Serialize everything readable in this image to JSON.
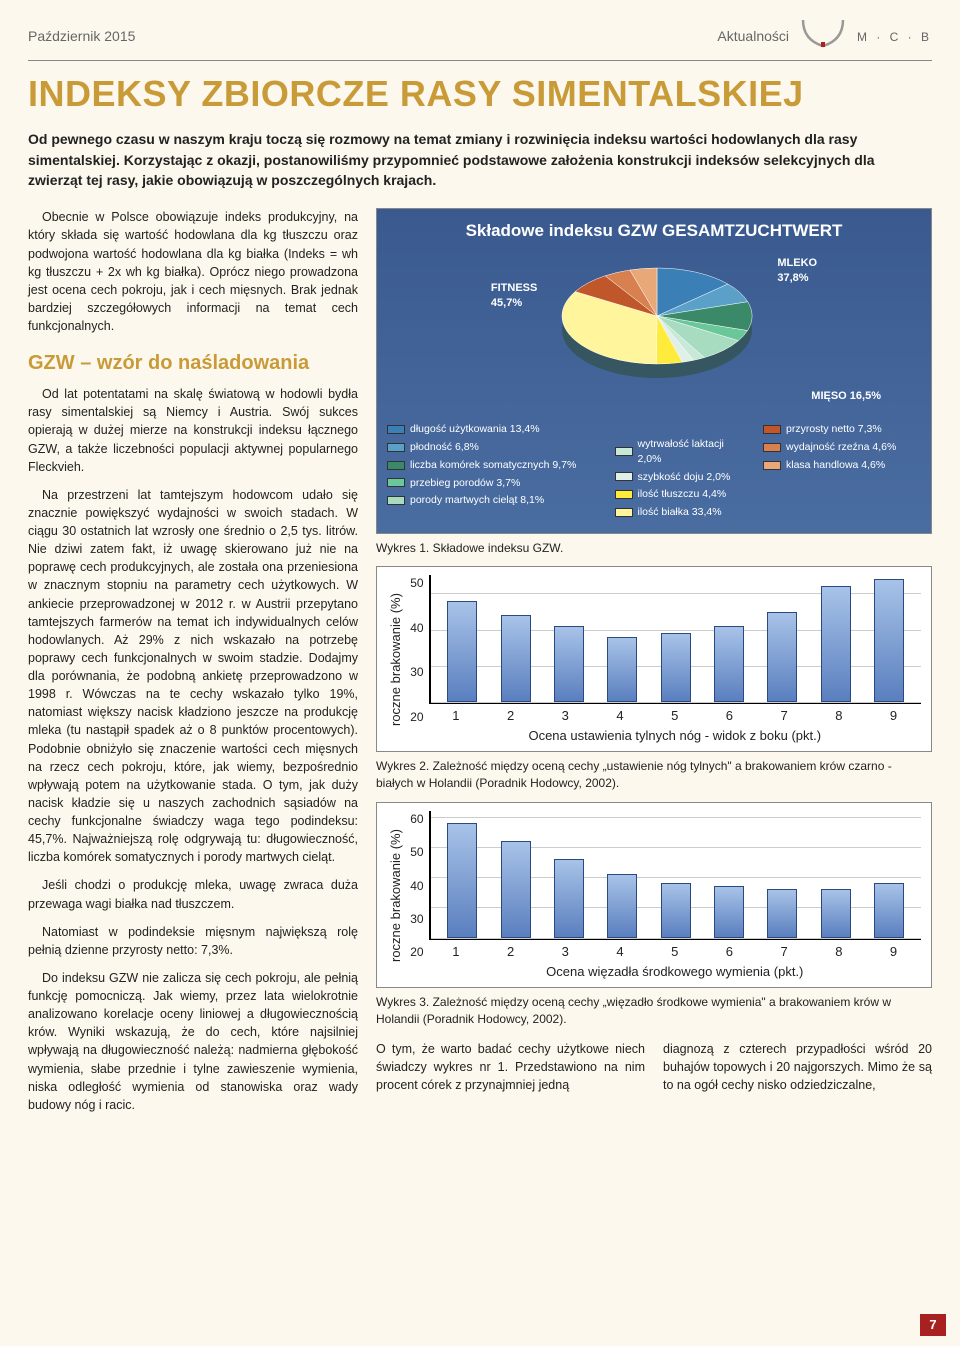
{
  "header": {
    "date": "Październik 2015",
    "section": "Aktualności",
    "brand_letters": "M · C · B"
  },
  "title": "INDEKSY ZBIORCZE RASY SIMENTALSKIEJ",
  "lead": "Od pewnego czasu w naszym kraju toczą się rozmowy na temat zmiany i rozwinięcia indeksu wartości hodowlanych dla rasy simentalskiej. Korzystając z okazji, postanowiliśmy przypomnieć podstawowe założenia konstrukcji indeksów selekcyjnych dla zwierząt tej rasy, jakie obowiązują w poszczególnych krajach.",
  "para1": "Obecnie w Polsce obowiązuje indeks produkcyjny, na który składa się wartość hodowlana dla kg tłuszczu oraz podwojona wartość hodowlana dla kg białka (Indeks = wh kg tłuszczu + 2x wh kg białka). Oprócz niego prowadzona jest ocena cech pokroju, jak i cech mięsnych. Brak jednak bardziej szczegółowych informacji na temat cech funkcjonalnych.",
  "sub1": "GZW – wzór do naśladowania",
  "para2": "Od lat potentatami na skalę światową w hodowli bydła rasy simentalskiej są Niemcy i Austria. Swój sukces opierają w dużej mierze na konstrukcji indeksu łącznego GZW, a także liczebności populacji aktywnej popularnego Fleckvieh.",
  "para3": "Na przestrzeni lat tamtejszym hodowcom udało się znacznie powiększyć wydajności w swoich stadach. W ciągu 30 ostatnich lat wzrosły one średnio o 2,5 tys. litrów. Nie dziwi zatem fakt, iż uwagę skierowano już nie na poprawę cech produkcyjnych, ale została ona przeniesiona w znacznym stopniu na parametry cech użytkowych. W ankiecie przeprowadzonej w 2012 r. w Austrii przepytano tamtejszych farmerów na temat ich indywidualnych celów hodowlanych. Aż 29% z nich wskazało na potrzebę poprawy cech funkcjonalnych w swoim stadzie. Dodajmy dla porównania, że podobną ankietę przeprowadzono w 1998 r. Wówczas na te cechy wskazało tylko 19%, natomiast większy nacisk kładziono jeszcze na produkcję mleka (tu nastąpił spadek aż o 8 punktów procentowych). Podobnie obniżyło się znaczenie wartości cech mięsnych na rzecz cech pokroju, które, jak wiemy, bezpośrednio wpływają potem na użytkowanie stada. O tym, jak duży nacisk kładzie się u naszych zachodnich sąsiadów na cechy funkcjonalne świadczy waga tego podindeksu: 45,7%. Najważniejszą rolę odgrywają tu: długowieczność, liczba komórek somatycznych i porody martwych cieląt.",
  "para4": "Jeśli chodzi o produkcję mleka, uwagę zwraca duża przewaga wagi białka nad tłuszczem.",
  "para5": "Natomiast w podindeksie mięsnym największą rolę pełnią dzienne przyrosty netto: 7,3%.",
  "para6": "Do indeksu GZW nie zalicza się cech pokroju, ale pełnią funkcję pomocniczą. Jak wiemy, przez lata wielokrotnie analizowano korelacje oceny liniowej a długowiecznością krów. Wyniki wskazują, że do cech, które najsilniej wpływają na długowieczność należą: nadmierna głębokość wymienia, słabe przednie i tylne zawieszenie wymienia, niska odległość wymienia od stanowiska oraz wady budowy nóg i racic.",
  "pie": {
    "title": "Składowe indeksu GZW GESAMTZUCHTWERT",
    "fitness_label": "FITNESS",
    "fitness_value": "45,7%",
    "mleko_label": "MLEKO",
    "mleko_value": "37,8%",
    "mieso_label": "MIĘSO",
    "mieso_value": "16,5%",
    "slices": [
      {
        "label": "fitness",
        "pct": 45.7,
        "color": "#4aa8c9"
      },
      {
        "label": "mleko",
        "pct": 37.8,
        "color": "#ffeb3b"
      },
      {
        "label": "mieso",
        "pct": 16.5,
        "color": "#c0572a"
      }
    ],
    "legend_left": [
      {
        "color": "#3a7fb5",
        "text": "długość użytkowania 13,4%"
      },
      {
        "color": "#5aa0c9",
        "text": "płodność 6,8%"
      },
      {
        "color": "#3a8a6a",
        "text": "liczba komórek somatycznych 9,7%"
      },
      {
        "color": "#6ac79a",
        "text": "przebieg porodów 3,7%"
      },
      {
        "color": "#a8dcc0",
        "text": "porody martwych cieląt 8,1%"
      },
      {
        "color": "#c8e8d8",
        "text": "wytrwałość laktacji 2,0%"
      },
      {
        "color": "#e0f0e8",
        "text": "szybkość doju 2,0%"
      }
    ],
    "legend_mid": [
      {
        "color": "#ffeb3b",
        "text": "ilość tłuszczu 4,4%"
      },
      {
        "color": "#fff59d",
        "text": "ilość białka 33,4%"
      }
    ],
    "legend_right": [
      {
        "color": "#c0572a",
        "text": "przyrosty netto 7,3%"
      },
      {
        "color": "#d88050",
        "text": "wydajność rzeźna 4,6%"
      },
      {
        "color": "#e8a878",
        "text": "klasa handlowa 4,6%"
      }
    ]
  },
  "caption1": "Wykres 1. Składowe indeksu GZW.",
  "chart2": {
    "y_label": "roczne brakowanie (%)",
    "y_ticks": [
      "50",
      "40",
      "30",
      "20"
    ],
    "y_min": 20,
    "y_max": 55,
    "x_ticks": [
      "1",
      "2",
      "3",
      "4",
      "5",
      "6",
      "7",
      "8",
      "9"
    ],
    "x_label": "Ocena ustawienia tylnych nóg - widok z boku (pkt.)",
    "values": [
      48,
      44,
      41,
      38,
      39,
      41,
      45,
      52,
      54
    ],
    "bar_color_top": "#a8c3e8",
    "bar_color_bottom": "#5a7fbf",
    "grid_color": "#cccccc"
  },
  "caption2": "Wykres 2. Zależność między oceną cechy „ustawienie nóg tylnych\" a brakowaniem krów czarno - białych w Holandii (Poradnik Hodowcy, 2002).",
  "chart3": {
    "y_label": "roczne brakowanie (%)",
    "y_ticks": [
      "60",
      "50",
      "40",
      "30",
      "20"
    ],
    "y_min": 20,
    "y_max": 62,
    "x_ticks": [
      "1",
      "2",
      "3",
      "4",
      "5",
      "6",
      "7",
      "8",
      "9"
    ],
    "x_label": "Ocena więzadła środkowego wymienia (pkt.)",
    "values": [
      58,
      52,
      46,
      41,
      38,
      37,
      36,
      36,
      38
    ],
    "bar_color_top": "#a8c3e8",
    "bar_color_bottom": "#5a7fbf",
    "grid_color": "#cccccc"
  },
  "caption3": "Wykres 3. Zależność między oceną cechy „więzadło środkowe wymienia\" a brakowaniem krów w Holandii (Poradnik Hodowcy, 2002).",
  "bottom_left": "O tym, że warto badać cechy użytkowe niech świadczy wykres nr 1. Przedstawiono na nim procent córek z przynajmniej jedną",
  "bottom_right": "diagnozą z czterech przypadłości wśród 20 buhajów topowych i 20 najgorszych. Mimo że są to na ogół cechy nisko odziedziczalne,",
  "page_num": "7"
}
